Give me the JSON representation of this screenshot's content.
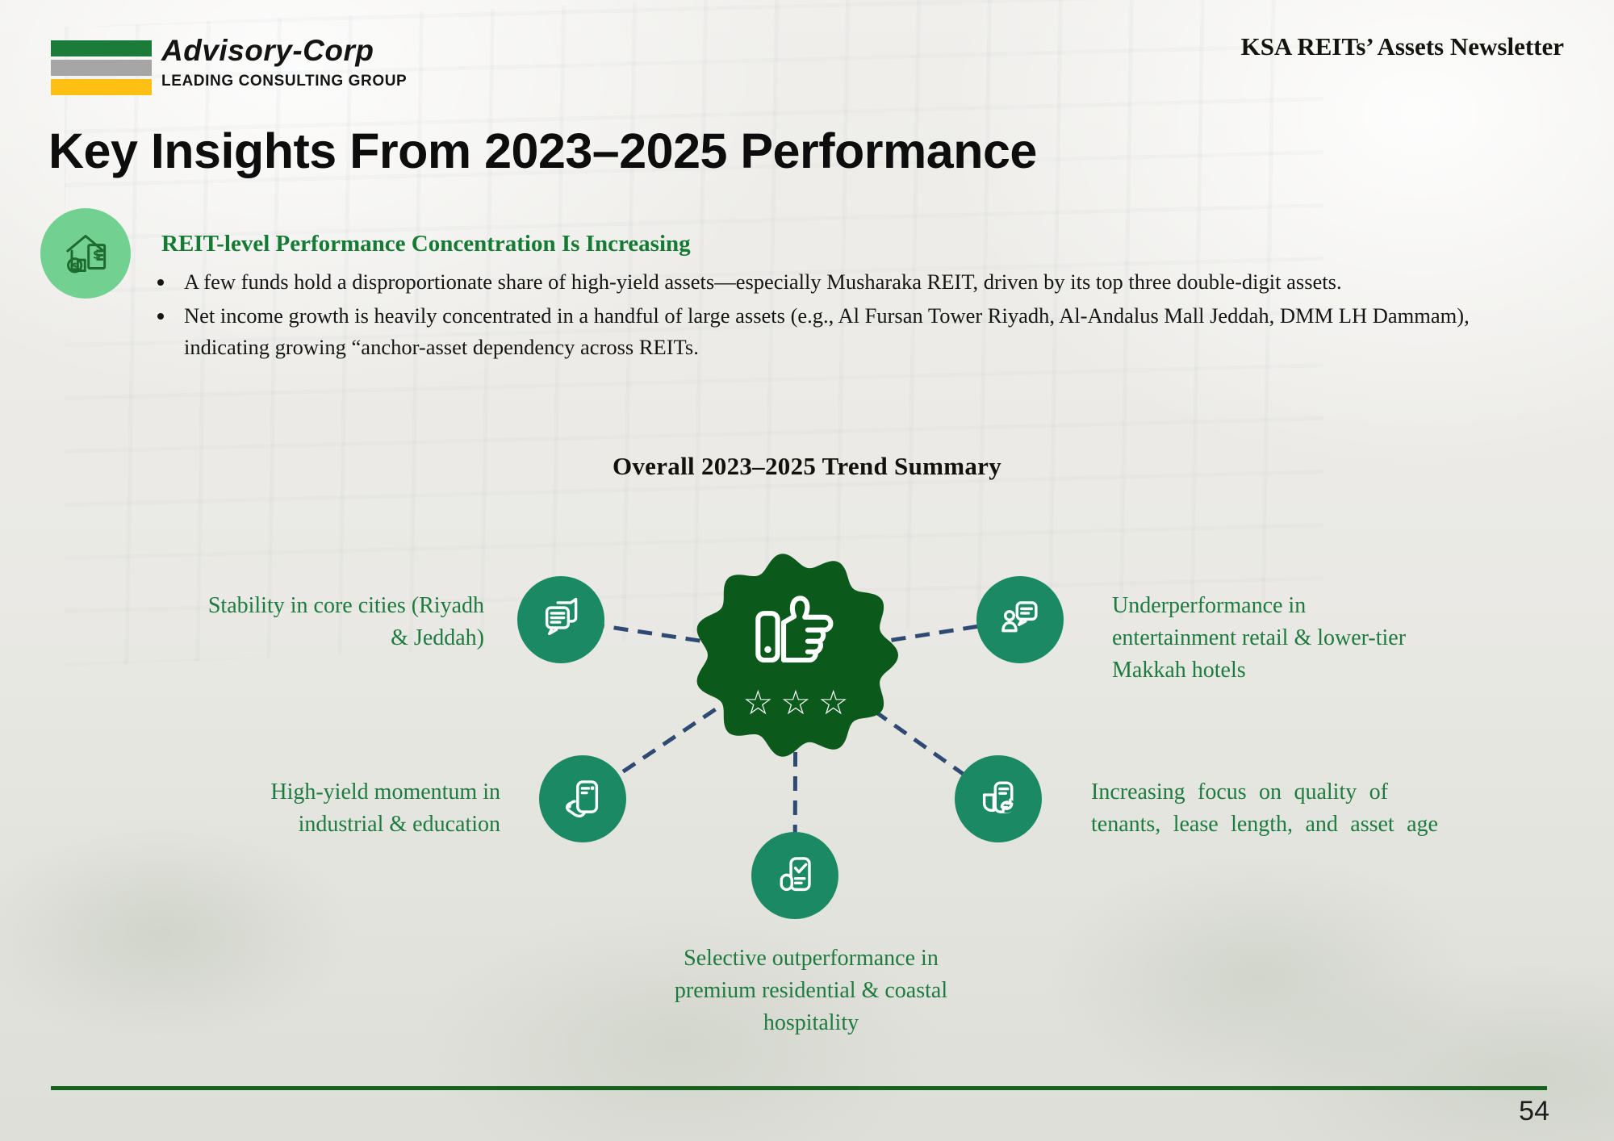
{
  "header": {
    "brand_name": "Advisory-Corp",
    "brand_tagline": "LEADING CONSULTING GROUP",
    "newsletter_title": "KSA REITs’ Assets Newsletter"
  },
  "title": "Key Insights From 2023–2025 Performance",
  "insight": {
    "icon": "money-house-icon",
    "heading": "REIT-level Performance Concentration Is Increasing",
    "bullets": [
      "A few funds hold a disproportionate share of high-yield assets—especially Musharaka REIT, driven by its top three double-digit assets.",
      "Net income growth is heavily concentrated in a handful of large assets (e.g., Al Fursan Tower Riyadh, Al-Andalus Mall Jeddah, DMM LH Dammam), indicating growing “anchor-asset dependency across REITs."
    ]
  },
  "diagram": {
    "heading": "Overall 2023–2025 Trend Summary",
    "center_icon": "thumbs-up-rating-icon",
    "center_stars": "☆☆☆",
    "nodes": [
      {
        "id": "core-cities",
        "icon": "chat-messages-icon",
        "label": "Stability in core cities (Riyadh\n& Jeddah)"
      },
      {
        "id": "underperformance",
        "icon": "person-chat-icon",
        "label": "Underperformance in\nentertainment retail & lower-tier\nMakkah hotels"
      },
      {
        "id": "high-yield",
        "icon": "hand-document-icon",
        "label": "High-yield momentum in\nindustrial & education"
      },
      {
        "id": "tenant-quality",
        "icon": "document-sync-icon",
        "label": "Increasing focus on quality of\ntenants, lease length, and asset age"
      },
      {
        "id": "selective-outperformance",
        "icon": "checklist-icon",
        "label": "Selective outperformance in\npremium residential & coastal\nhospitality"
      }
    ]
  },
  "footer": {
    "page_number": "54"
  },
  "colors": {
    "brand-green": "#1a7c38",
    "brand-gray": "#a6a6a6",
    "brand-yellow": "#fdc013",
    "badge-green": "#0b5a1c",
    "node-green": "#1b8a64",
    "light-green": "#72d190",
    "icon-green": "#1d6b2e",
    "heading-green": "#157a33",
    "text-green": "#1e7b3f",
    "connector-navy": "#2e4a72",
    "line-green": "#15611e"
  }
}
